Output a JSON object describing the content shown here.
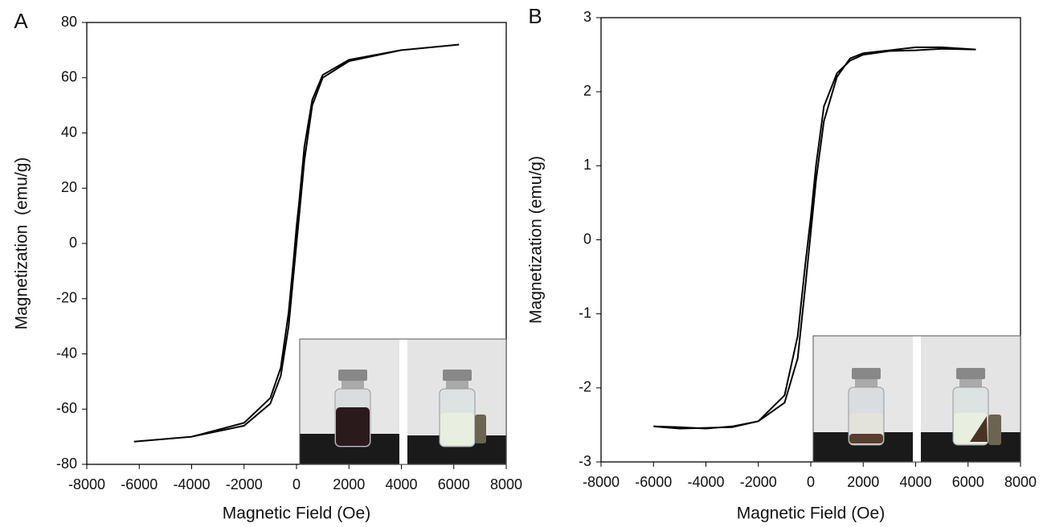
{
  "chart_data": [
    {
      "type": "line",
      "panel_label": "A",
      "xlabel": "Magnetic Field (Oe)",
      "ylabel": "Magnetization  (emu/g)",
      "xlim": [
        -8000,
        8000
      ],
      "xticks": [
        -8000,
        -6000,
        -4000,
        -2000,
        0,
        2000,
        4000,
        6000,
        8000
      ],
      "ylim": [
        -80,
        80
      ],
      "yticks": [
        -80,
        -60,
        -40,
        -20,
        0,
        20,
        40,
        60,
        80
      ],
      "x": [
        -6200,
        -4000,
        -2000,
        -1000,
        -600,
        -300,
        -100,
        0,
        100,
        300,
        600,
        1000,
        2000,
        4000,
        6200,
        4000,
        2000,
        1000,
        600,
        300,
        100,
        0,
        -100,
        -300,
        -600,
        -1000,
        -2000,
        -4000,
        -6200
      ],
      "series": [
        {
          "color": "#000000",
          "values": [
            -71.8,
            -70,
            -66,
            -58,
            -48,
            -30,
            -10,
            0,
            10,
            30,
            50,
            60,
            66,
            70,
            72,
            70,
            66.5,
            61,
            52,
            35,
            15,
            6,
            -5,
            -25,
            -45,
            -56,
            -65,
            -70,
            -71.8
          ]
        }
      ]
    },
    {
      "type": "line",
      "panel_label": "B",
      "xlabel": "Magnetic Field (Oe)",
      "ylabel": "Magnetization (emu/g)",
      "xlim": [
        -8000,
        8000
      ],
      "xticks": [
        -8000,
        -6000,
        -4000,
        -2000,
        0,
        2000,
        4000,
        6000,
        8000
      ],
      "ylim": [
        -3,
        3
      ],
      "yticks": [
        -3,
        -2,
        -1,
        0,
        1,
        2,
        3
      ],
      "x": [
        -6000,
        -5000,
        -4000,
        -3000,
        -2000,
        -1000,
        -500,
        -200,
        0,
        200,
        500,
        1000,
        1500,
        2000,
        3000,
        4000,
        5000,
        6300,
        5000,
        4000,
        3000,
        2000,
        1500,
        1000,
        500,
        200,
        0,
        -200,
        -500,
        -1000,
        -2000,
        -3000,
        -4000,
        -5000,
        -6000
      ],
      "series": [
        {
          "color": "#000000",
          "values": [
            -2.52,
            -2.55,
            -2.54,
            -2.53,
            -2.45,
            -2.2,
            -1.6,
            -0.6,
            0.1,
            0.8,
            1.6,
            2.2,
            2.45,
            2.52,
            2.56,
            2.6,
            2.6,
            2.57,
            2.58,
            2.56,
            2.55,
            2.5,
            2.42,
            2.25,
            1.8,
            1.0,
            0.3,
            -0.3,
            -1.3,
            -2.1,
            -2.45,
            -2.52,
            -2.55,
            -2.53,
            -2.52
          ]
        }
      ]
    }
  ]
}
